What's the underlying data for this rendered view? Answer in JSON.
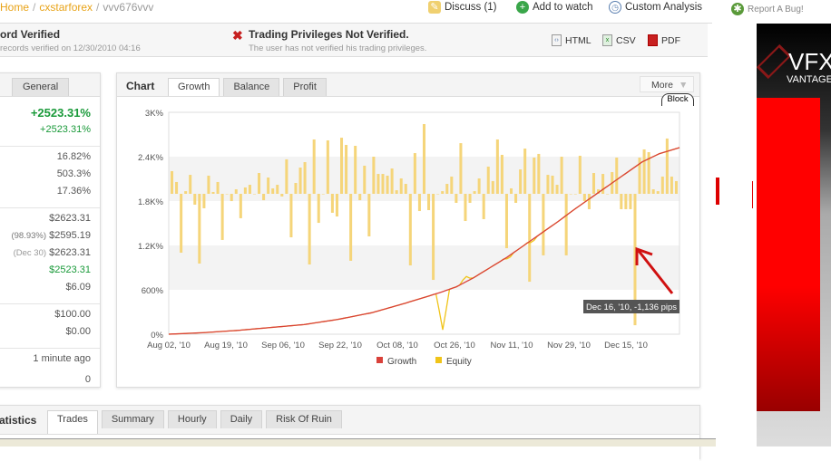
{
  "breadcrumb": {
    "items": [
      "Home",
      "cxstarforex",
      "vvv676vvv"
    ]
  },
  "toplinks": {
    "discuss": "Discuss (1)",
    "watch": "Add to watch",
    "analysis": "Custom Analysis",
    "bug": "Report A Bug!"
  },
  "verification": {
    "track_title": "ord Verified",
    "track_sub": "records verified on 12/30/2010 04:16",
    "priv_title": "Trading Privileges Not Verified.",
    "priv_sub": "The user has not verified his trading privileges."
  },
  "export": {
    "html": "HTML",
    "csv": "CSV",
    "pdf": "PDF"
  },
  "left_panel": {
    "tab": "General",
    "gain": "+2523.31%",
    "abs_gain": "+2523.31%",
    "group2": [
      "16.82%",
      "503.3%",
      "17.36%"
    ],
    "balance": "$2623.31",
    "equity_pct": "(98.93%)",
    "equity": "$2595.19",
    "highest_date": "(Dec 30)",
    "highest": "$2623.31",
    "profit": "$2523.31",
    "interest": "$6.09",
    "deposits": "$100.00",
    "withdrawals": "$0.00",
    "updated": "1 minute ago",
    "tracking": "0"
  },
  "chart_panel": {
    "title": "Chart",
    "tabs": [
      "Growth",
      "Balance",
      "Profit"
    ],
    "active_tab": "Growth",
    "more": "More",
    "block": "Block",
    "tooltip": "Dec 16, '10, -1,136 pips"
  },
  "colors": {
    "growth": "#d9413a",
    "equity": "#f0c419",
    "bars": "#f5d57a",
    "accent": "#e8a317",
    "green": "#1a9a3a"
  },
  "chart_data": {
    "type": "line",
    "ylim": [
      0,
      3000
    ],
    "y_ticks": [
      "0%",
      "600%",
      "1.2K%",
      "1.8K%",
      "2.4K%",
      "3K%"
    ],
    "x_ticks": [
      "Aug 02, '10",
      "Aug 19, '10",
      "Sep 06, '10",
      "Sep 22, '10",
      "Oct 08, '10",
      "Oct 26, '10",
      "Nov 11, '10",
      "Nov 29, '10",
      "Dec 15, '10"
    ],
    "legend": [
      "Growth",
      "Equity"
    ],
    "legend_position": "bottom",
    "grid": true,
    "growth": {
      "days": [
        0,
        10,
        20,
        30,
        40,
        50,
        60,
        70,
        80,
        85,
        90,
        95,
        100,
        105,
        110,
        115,
        120,
        125,
        130,
        135,
        140,
        145,
        151
      ],
      "values": [
        0,
        20,
        50,
        90,
        130,
        200,
        290,
        420,
        560,
        640,
        760,
        900,
        1040,
        1200,
        1360,
        1520,
        1690,
        1850,
        2010,
        2170,
        2330,
        2440,
        2523
      ]
    },
    "equity_dips": [
      {
        "day": 81,
        "value": 60
      },
      {
        "day": 88,
        "value": 780
      },
      {
        "day": 100,
        "value": 1020
      },
      {
        "day": 107,
        "value": 1240
      }
    ],
    "daily_pips": [
      196,
      102,
      -509,
      23,
      164,
      -94,
      -603,
      -125,
      157,
      16,
      102,
      -399,
      0,
      -63,
      39,
      -211,
      55,
      78,
      0,
      180,
      -55,
      141,
      47,
      78,
      -23,
      298,
      -376,
      94,
      227,
      274,
      -611,
      470,
      -251,
      0,
      462,
      -164,
      -196,
      485,
      423,
      -579,
      415,
      -55,
      243,
      -368,
      321,
      172,
      172,
      157,
      219,
      31,
      133,
      86,
      -619,
      352,
      -149,
      603,
      -141,
      -744,
      0,
      23,
      86,
      149,
      -78,
      438,
      -235,
      -78,
      23,
      133,
      -219,
      235,
      110,
      470,
      337,
      -470,
      47,
      -78,
      211,
      391,
      -760,
      313,
      345,
      -532,
      164,
      157,
      78,
      321,
      -532,
      0,
      0,
      329,
      -63,
      -133,
      180,
      39,
      172,
      0,
      188,
      313,
      -133,
      -133,
      -133,
      -1136,
      313,
      384,
      360,
      39,
      23,
      149,
      478,
      149,
      110
    ]
  },
  "bottom_panel": {
    "title": "atistics",
    "tabs": [
      "Trades",
      "Summary",
      "Hourly",
      "Daily",
      "Risk Of Ruin"
    ],
    "active_tab": "Trades"
  },
  "ad": {
    "brand": "VFX",
    "sub": "VANTAGE"
  }
}
